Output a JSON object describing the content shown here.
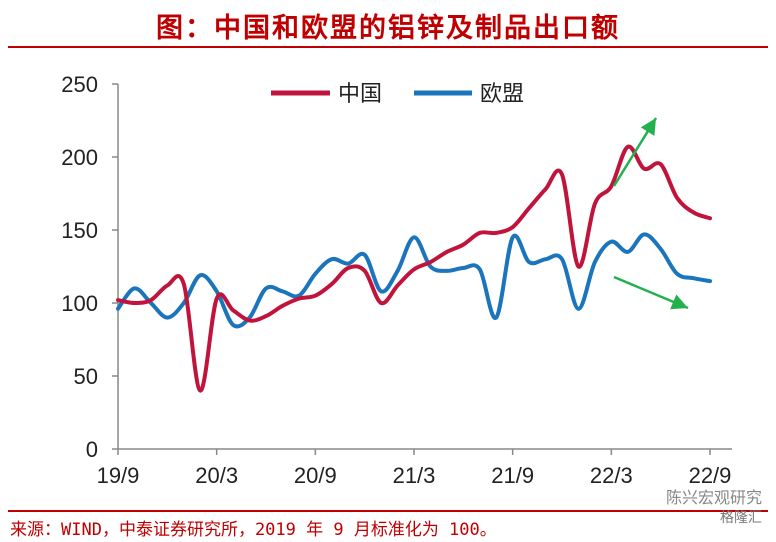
{
  "title": "图：中国和欧盟的铝锌及制品出口额",
  "source": "来源：WIND，中泰证券研究所，2019 年 9 月标准化为 100。",
  "watermark": {
    "line1": "陈兴宏观研究",
    "line2": "格隆汇"
  },
  "colors": {
    "china": "#c0143c",
    "eu": "#1b75bc",
    "title": "#c00000",
    "arrow": "#22b14c"
  },
  "chart_data": {
    "type": "line",
    "x": [
      "19/9",
      "19/10",
      "19/11",
      "19/12",
      "20/1",
      "20/2",
      "20/3",
      "20/4",
      "20/5",
      "20/6",
      "20/7",
      "20/8",
      "20/9",
      "20/10",
      "20/11",
      "20/12",
      "21/1",
      "21/2",
      "21/3",
      "21/4",
      "21/5",
      "21/6",
      "21/7",
      "21/8",
      "21/9",
      "21/10",
      "21/11",
      "21/12",
      "22/1",
      "22/2",
      "22/3",
      "22/4",
      "22/5",
      "22/6",
      "22/7",
      "22/8",
      "22/9"
    ],
    "x_tick_labels": [
      "19/9",
      "20/3",
      "20/9",
      "21/3",
      "21/9",
      "22/3",
      "22/9"
    ],
    "ylim": [
      0,
      250
    ],
    "y_ticks": [
      0,
      50,
      100,
      150,
      200,
      250
    ],
    "legend": "top-center",
    "grid": false,
    "series": [
      {
        "name": "中国",
        "values": [
          102,
          100,
          102,
          112,
          113,
          40,
          103,
          95,
          88,
          91,
          98,
          103,
          105,
          113,
          124,
          122,
          100,
          112,
          123,
          128,
          135,
          140,
          148,
          148,
          152,
          165,
          178,
          188,
          125,
          168,
          180,
          207,
          192,
          195,
          172,
          162,
          158
        ]
      },
      {
        "name": "欧盟",
        "values": [
          96,
          110,
          100,
          90,
          100,
          119,
          108,
          85,
          90,
          110,
          108,
          105,
          120,
          130,
          127,
          133,
          108,
          122,
          145,
          125,
          122,
          124,
          123,
          90,
          145,
          128,
          130,
          130,
          96,
          128,
          142,
          135,
          147,
          137,
          120,
          117,
          115
        ]
      }
    ],
    "annotations": [
      {
        "type": "arrow",
        "direction": "up",
        "color": "green"
      },
      {
        "type": "arrow",
        "direction": "down",
        "color": "green"
      }
    ]
  }
}
